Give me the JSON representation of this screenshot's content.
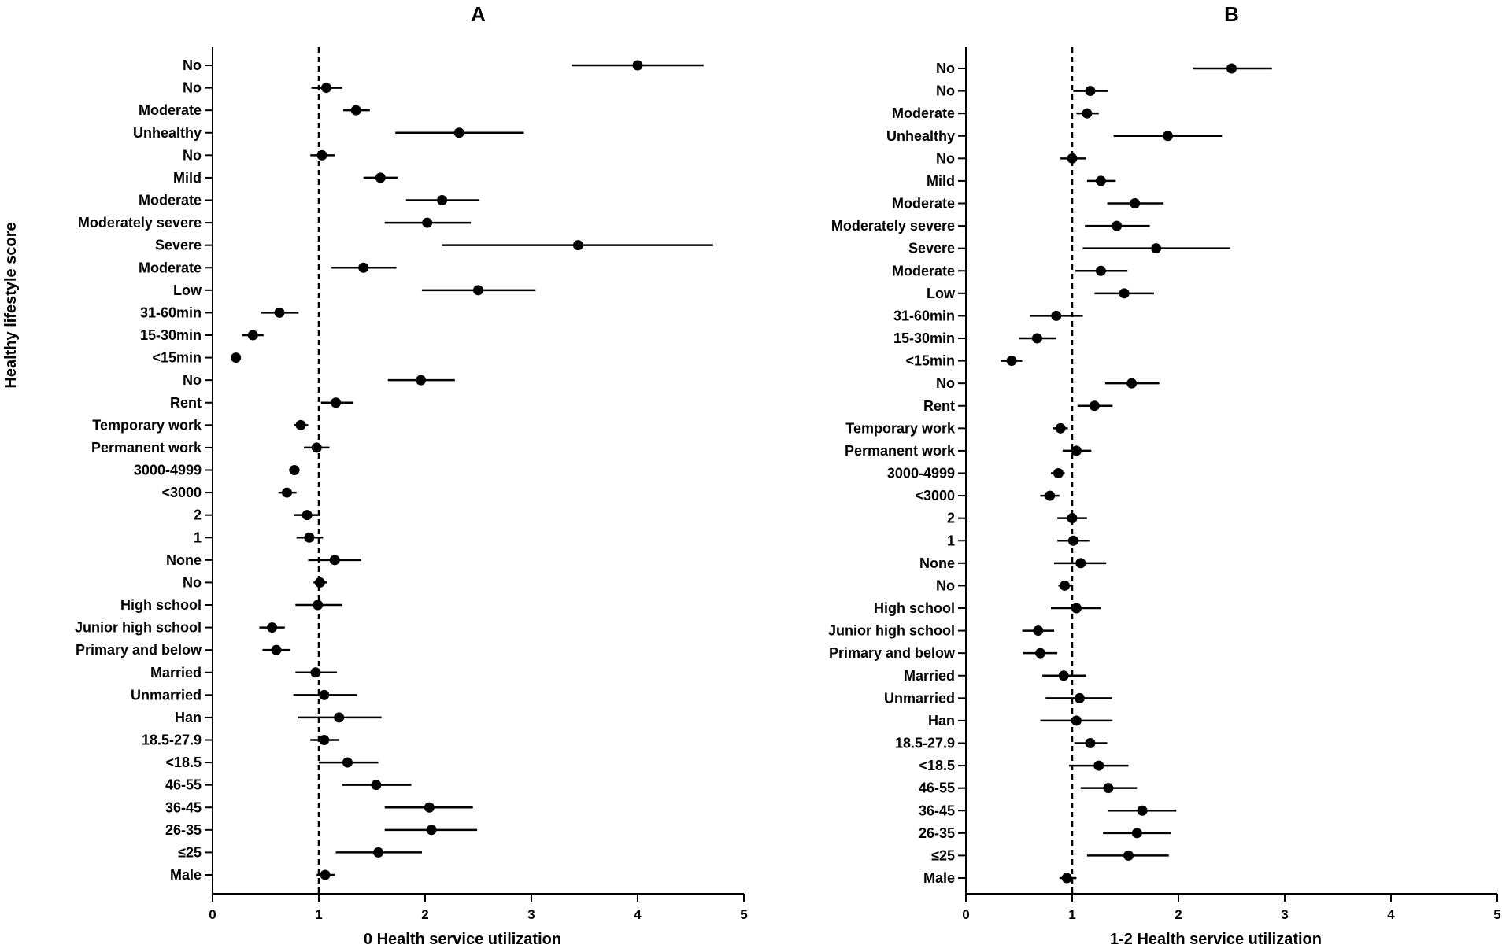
{
  "y_axis_title": "Healthy lifestyle score",
  "chart_data": [
    {
      "type": "forest",
      "panel": "A",
      "xlabel": "0 Health service utilization",
      "xlim": [
        0,
        5
      ],
      "xticks": [
        0,
        1,
        2,
        3,
        4,
        5
      ],
      "reference_line": 1,
      "categories": [
        "No",
        "No",
        "Moderate",
        "Unhealthy",
        "No",
        "Mild",
        "Moderate",
        "Moderately severe",
        "Severe",
        "Moderate",
        "Low",
        "31-60min",
        "15-30min",
        "<15min",
        "No",
        "Rent",
        "Temporary work",
        "Permanent work",
        "3000-4999",
        "<3000",
        "2",
        "1",
        "None",
        "No",
        "High school",
        "Junior high school",
        "Primary and below",
        "Married",
        "Unmarried",
        "Han",
        "18.5-27.9",
        "<18.5",
        "46-55",
        "36-45",
        "26-35",
        "≤25",
        "Male"
      ],
      "estimates": [
        4.0,
        1.07,
        1.35,
        2.32,
        1.03,
        1.58,
        2.16,
        2.02,
        3.44,
        1.42,
        2.5,
        0.63,
        0.38,
        0.22,
        1.96,
        1.16,
        0.83,
        0.98,
        0.77,
        0.7,
        0.89,
        0.91,
        1.15,
        1.01,
        0.99,
        0.56,
        0.6,
        0.97,
        1.05,
        1.19,
        1.05,
        1.27,
        1.54,
        2.04,
        2.06,
        1.56,
        1.06
      ],
      "lower": [
        3.38,
        0.93,
        1.23,
        1.72,
        0.92,
        1.42,
        1.82,
        1.62,
        2.16,
        1.12,
        1.97,
        0.46,
        0.28,
        0.19,
        1.65,
        1.02,
        0.77,
        0.86,
        0.72,
        0.62,
        0.77,
        0.79,
        0.9,
        0.95,
        0.78,
        0.44,
        0.47,
        0.78,
        0.76,
        0.8,
        0.92,
        1.0,
        1.22,
        1.62,
        1.62,
        1.16,
        0.98
      ],
      "upper": [
        4.62,
        1.22,
        1.48,
        2.93,
        1.15,
        1.74,
        2.51,
        2.43,
        4.71,
        1.73,
        3.04,
        0.81,
        0.48,
        0.26,
        2.28,
        1.32,
        0.9,
        1.1,
        0.82,
        0.79,
        1.01,
        1.04,
        1.4,
        1.08,
        1.22,
        0.68,
        0.73,
        1.17,
        1.36,
        1.59,
        1.19,
        1.56,
        1.87,
        2.45,
        2.49,
        1.97,
        1.15
      ]
    },
    {
      "type": "forest",
      "panel": "B",
      "xlabel": "1-2 Health service utilization",
      "xlim": [
        0,
        5
      ],
      "xticks": [
        0,
        1,
        2,
        3,
        4,
        5
      ],
      "reference_line": 1,
      "categories": [
        "No",
        "No",
        "Moderate",
        "Unhealthy",
        "No",
        "Mild",
        "Moderate",
        "Moderately severe",
        "Severe",
        "Moderate",
        "Low",
        "31-60min",
        "15-30min",
        "<15min",
        "No",
        "Rent",
        "Temporary work",
        "Permanent work",
        "3000-4999",
        "<3000",
        "2",
        "1",
        "None",
        "No",
        "High school",
        "Junior high school",
        "Primary and below",
        "Married",
        "Unmarried",
        "Han",
        "18.5-27.9",
        "<18.5",
        "46-55",
        "36-45",
        "26-35",
        "≤25",
        "Male"
      ],
      "estimates": [
        2.5,
        1.17,
        1.14,
        1.9,
        1.0,
        1.27,
        1.59,
        1.42,
        1.79,
        1.27,
        1.49,
        0.85,
        0.67,
        0.43,
        1.56,
        1.21,
        0.89,
        1.04,
        0.87,
        0.79,
        1.0,
        1.01,
        1.08,
        0.93,
        1.04,
        0.68,
        0.7,
        0.92,
        1.07,
        1.04,
        1.17,
        1.25,
        1.34,
        1.66,
        1.61,
        1.53,
        0.95
      ],
      "lower": [
        2.14,
        1.01,
        1.04,
        1.39,
        0.89,
        1.14,
        1.33,
        1.12,
        1.1,
        1.03,
        1.21,
        0.6,
        0.5,
        0.33,
        1.31,
        1.05,
        0.82,
        0.91,
        0.8,
        0.7,
        0.86,
        0.86,
        0.83,
        0.87,
        0.8,
        0.53,
        0.54,
        0.72,
        0.75,
        0.7,
        1.02,
        0.97,
        1.08,
        1.34,
        1.29,
        1.14,
        0.88
      ],
      "upper": [
        2.88,
        1.34,
        1.25,
        2.41,
        1.13,
        1.41,
        1.86,
        1.73,
        2.49,
        1.52,
        1.77,
        1.1,
        0.85,
        0.53,
        1.82,
        1.38,
        0.96,
        1.18,
        0.93,
        0.88,
        1.14,
        1.16,
        1.32,
        1.0,
        1.27,
        0.83,
        0.86,
        1.13,
        1.37,
        1.38,
        1.33,
        1.53,
        1.61,
        1.98,
        1.93,
        1.91,
        1.04
      ]
    }
  ]
}
